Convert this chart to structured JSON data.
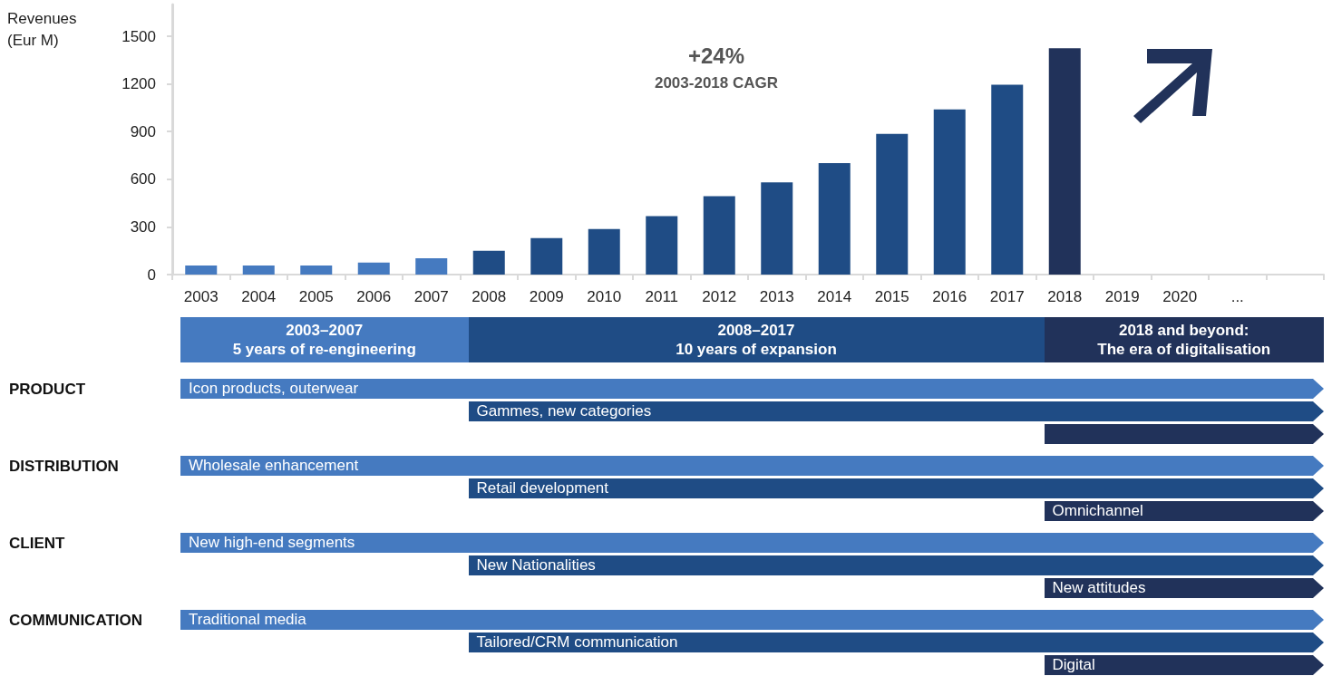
{
  "chart_data": {
    "type": "bar",
    "ylabel": "Revenues\n(Eur M)",
    "categories": [
      "2003",
      "2004",
      "2005",
      "2006",
      "2007",
      "2008",
      "2009",
      "2010",
      "2011",
      "2012",
      "2013",
      "2014",
      "2015",
      "2016",
      "2017",
      "2018",
      "2019",
      "2020",
      "...",
      null
    ],
    "values": [
      57,
      57,
      57,
      75,
      103,
      150,
      230,
      287,
      368,
      494,
      580,
      701,
      885,
      1040,
      1195,
      1425,
      null,
      null,
      null,
      null
    ],
    "colors": [
      "#457ac0",
      "#457ac0",
      "#457ac0",
      "#457ac0",
      "#457ac0",
      "#1f4c85",
      "#1f4c85",
      "#1f4c85",
      "#1f4c85",
      "#1f4c85",
      "#1f4c85",
      "#1f4c85",
      "#1f4c85",
      "#1f4c85",
      "#1f4c85",
      "#21325a",
      null,
      null,
      null,
      null
    ],
    "ylim": [
      0,
      1700
    ],
    "yticks": [
      0,
      300,
      600,
      900,
      1200,
      1500
    ],
    "grid": false,
    "annotations": [
      "+24%",
      "2003-2018 CAGR",
      "2003–2007\n5 years of re-engineering",
      "2008–2017\n10 years of expansion",
      "2018 and beyond:\nThe era of digitalisation",
      "PRODUCT",
      "Icon products, outerwear",
      "Gammes, new categories",
      "DISTRIBUTION",
      "Wholesale enhancement",
      "Retail development",
      "Omnichannel",
      "CLIENT",
      "New high-end segments",
      "New Nationalities",
      "New attitudes",
      "COMMUNICATION",
      "Traditional media",
      "Tailored/CRM communication",
      "Digital"
    ]
  }
}
